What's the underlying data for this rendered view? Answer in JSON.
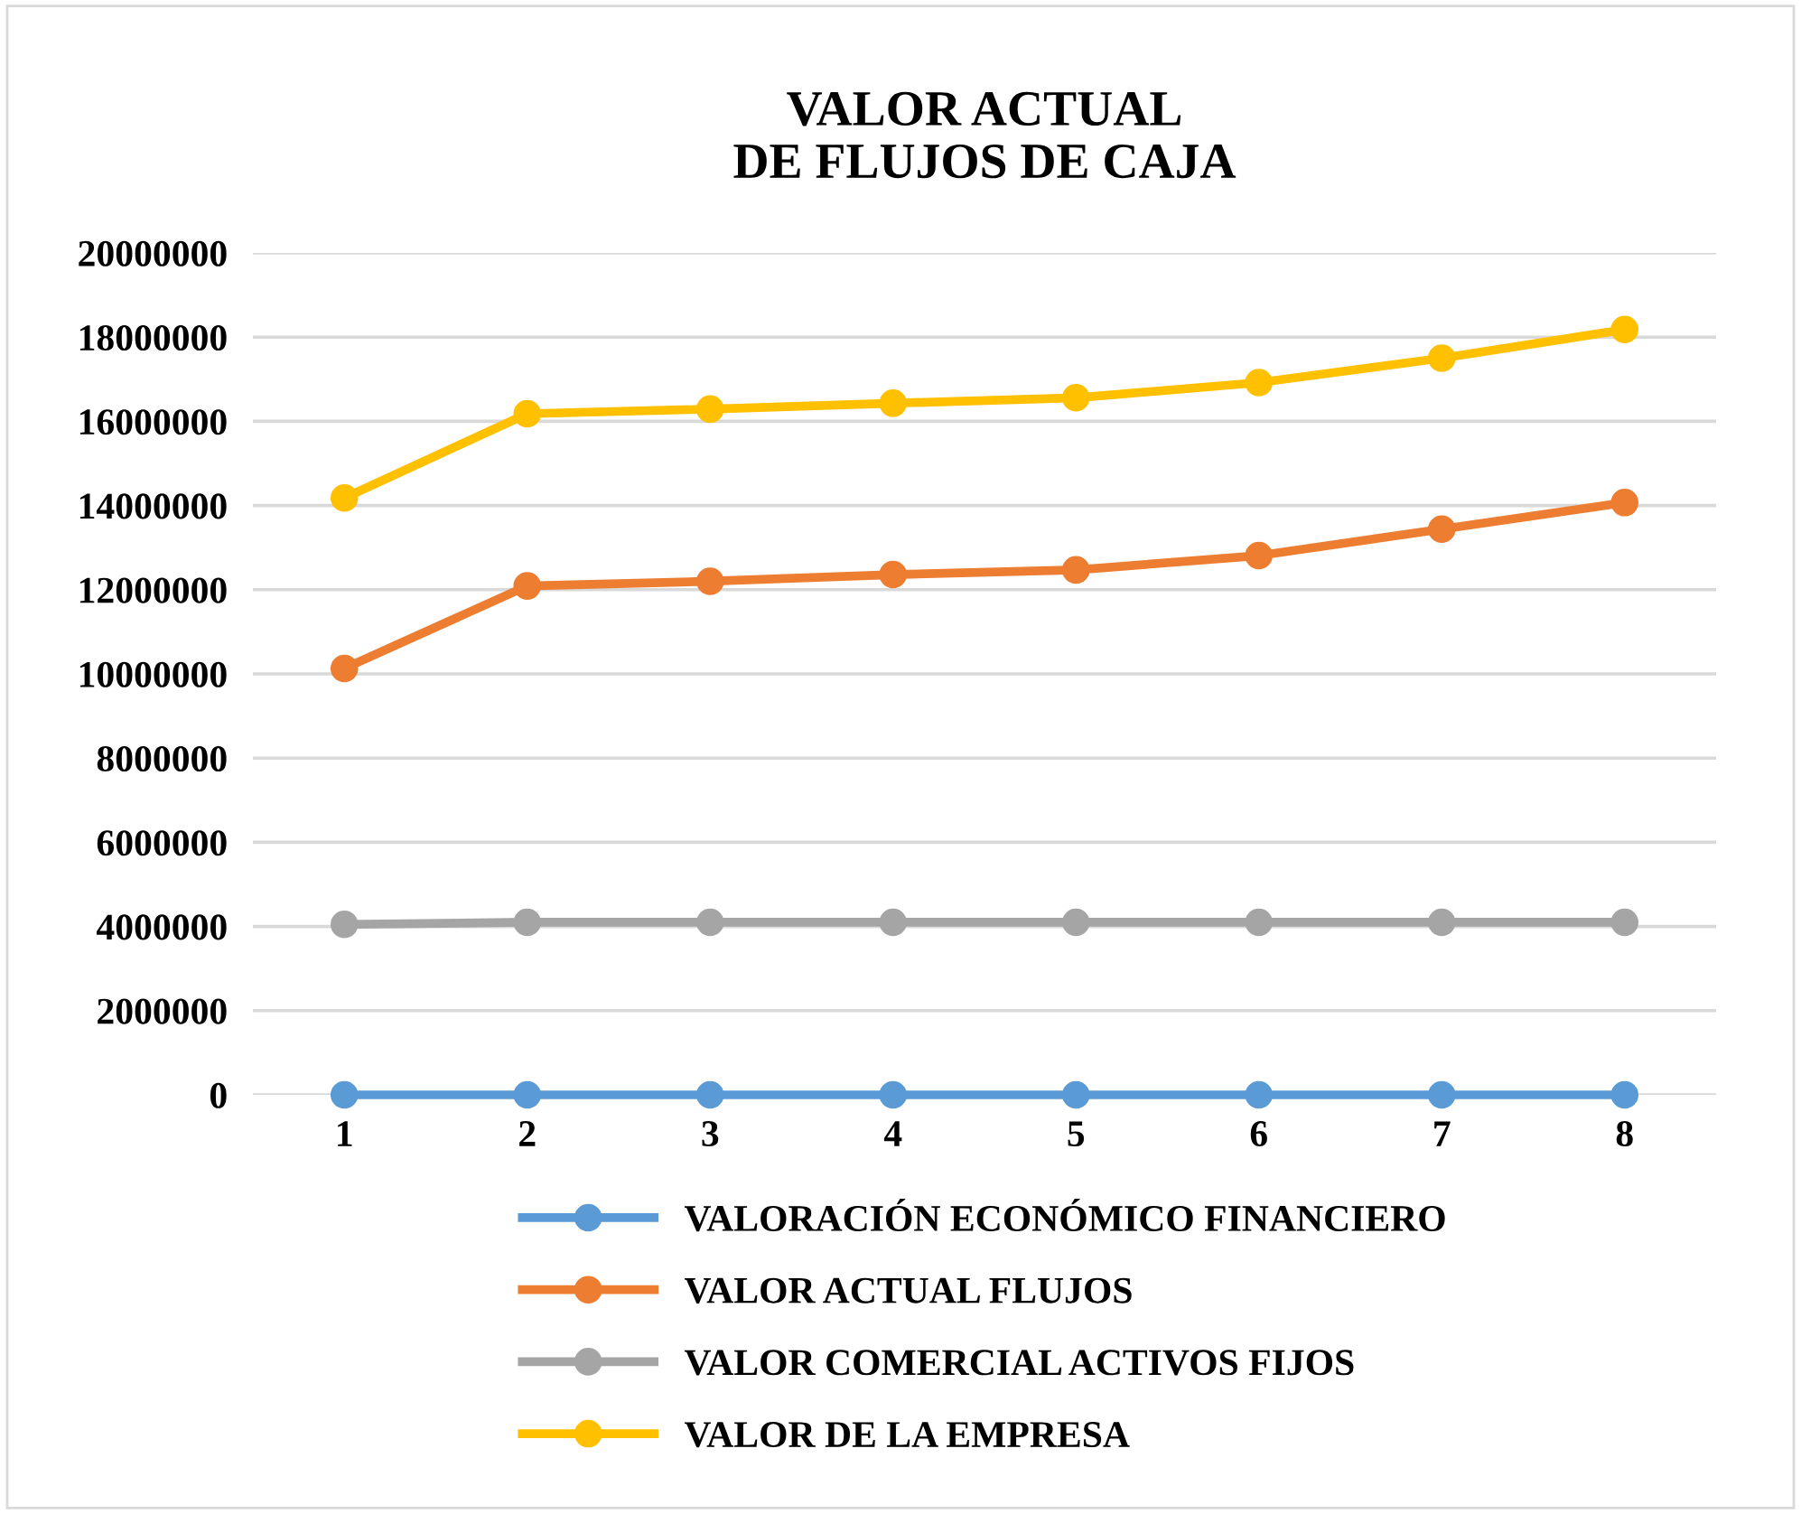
{
  "chart_data": {
    "type": "line",
    "title": "VALOR ACTUAL\nDE FLUJOS DE CAJA",
    "categories": [
      "1",
      "2",
      "3",
      "4",
      "5",
      "6",
      "7",
      "8"
    ],
    "series": [
      {
        "name": "VALORACIÓN ECONÓMICO FINANCIERO",
        "color": "#5b9bd5",
        "values": [
          0,
          0,
          0,
          0,
          0,
          0,
          0,
          0
        ]
      },
      {
        "name": "VALOR ACTUAL FLUJOS",
        "color": "#ed7d31",
        "values": [
          10130000,
          12090000,
          12200000,
          12360000,
          12470000,
          12810000,
          13440000,
          14070000
        ]
      },
      {
        "name": "VALOR COMERCIAL ACTIVOS FIJOS",
        "color": "#a5a5a5",
        "values": [
          4050000,
          4100000,
          4100000,
          4100000,
          4100000,
          4100000,
          4100000,
          4100000
        ]
      },
      {
        "name": "VALOR DE LA EMPRESA",
        "color": "#ffc000",
        "values": [
          14180000,
          16180000,
          16290000,
          16430000,
          16560000,
          16920000,
          17500000,
          18180000
        ]
      }
    ],
    "ylim": [
      0,
      20000000
    ],
    "yticks": [
      0,
      2000000,
      4000000,
      6000000,
      8000000,
      10000000,
      12000000,
      14000000,
      16000000,
      18000000,
      20000000
    ],
    "grid": "y",
    "legend": "bottom",
    "marker": "circle",
    "line_style": "solid"
  }
}
